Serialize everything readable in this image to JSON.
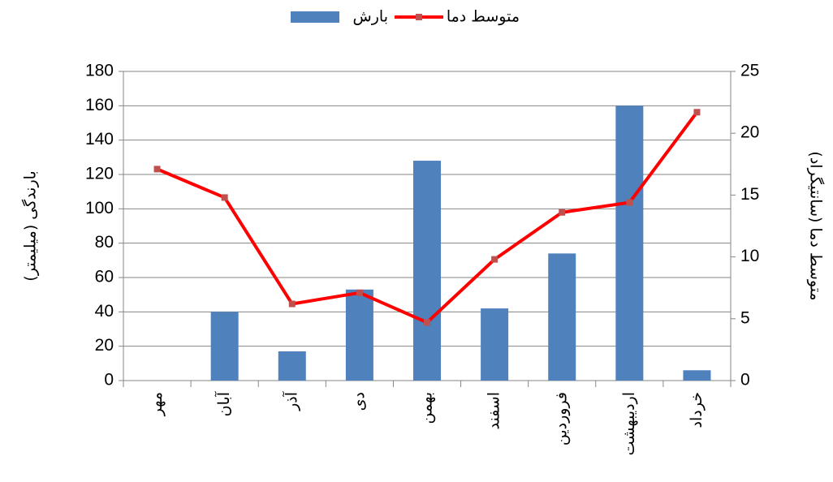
{
  "chart_data": {
    "type": "bar-line",
    "categories": [
      "مهر",
      "آبان",
      "آذر",
      "دی",
      "بهمن",
      "اسفند",
      "فروردین",
      "اردیبهشت",
      "خرداد"
    ],
    "series": [
      {
        "name": "بارش",
        "type": "bar",
        "color": "#4f81bd",
        "values": [
          0,
          40,
          17,
          53,
          128,
          42,
          74,
          160,
          6
        ]
      },
      {
        "name": "متوسط دما",
        "type": "line",
        "axis": "y2",
        "color": "#ff0000",
        "marker_color": "#c0504d",
        "values": [
          17.1,
          14.8,
          6.2,
          7.1,
          4.7,
          9.8,
          13.6,
          14.4,
          21.7
        ]
      }
    ],
    "ylabel": "بارندگی (میلیمتر)",
    "y2label": "متوسط دما (سانتیگراد)",
    "ylim": [
      0,
      180
    ],
    "yticks": [
      0,
      20,
      40,
      60,
      80,
      100,
      120,
      140,
      160,
      180
    ],
    "y2lim": [
      0,
      25
    ],
    "y2ticks": [
      0,
      5,
      10,
      15,
      20,
      25
    ],
    "grid": true,
    "legend": "top"
  }
}
